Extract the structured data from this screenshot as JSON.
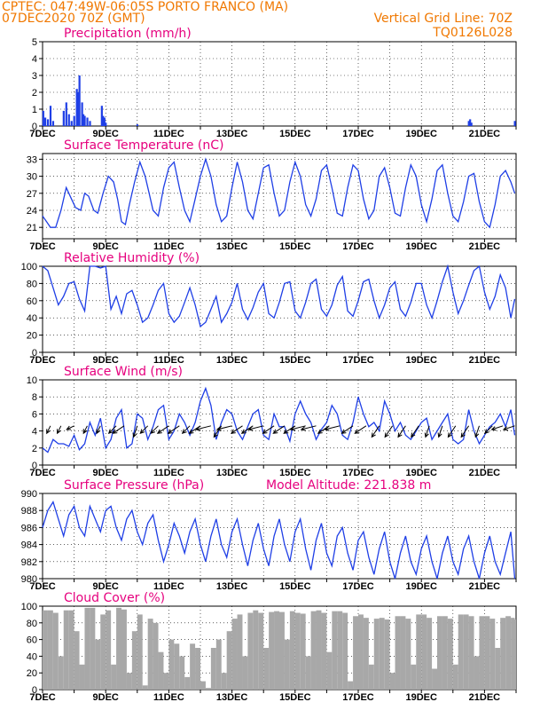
{
  "header": {
    "line1": "CPTEC:   047:49W-06:05S   PORTO FRANCO (MA)",
    "line2_left": "07DEC2020 70Z (GMT)",
    "line2_right": "Vertical Grid Line: 70Z",
    "line3_right": "TQ0126L028"
  },
  "colors": {
    "header": "#f07800",
    "panel_title": "#e6007e",
    "series": "#1f3fe6",
    "cloud": "#a8a8a8",
    "grid": "#000000"
  },
  "chart_data": [
    {
      "type": "bar",
      "title": "Precipitation (mm/h)",
      "ylim": [
        0,
        5
      ],
      "yticks": [
        "0",
        "1",
        "2",
        "3",
        "4",
        "5"
      ],
      "xticks": [
        "7DEC",
        "9DEC",
        "11DEC",
        "13DEC",
        "15DEC",
        "17DEC",
        "19DEC",
        "21DEC"
      ],
      "grid": true,
      "x_unit": "hours since 7DEC 00Z",
      "x": [
        0.5,
        2,
        4,
        6,
        8,
        16,
        18,
        20,
        22,
        24,
        26,
        27,
        28,
        30,
        31,
        32,
        34,
        36,
        45,
        46,
        47,
        48,
        72,
        324,
        325,
        326,
        359
      ],
      "values": [
        0.9,
        0.5,
        0.4,
        1.2,
        0.3,
        0.9,
        1.4,
        0.7,
        0.3,
        0.6,
        2.2,
        2.0,
        3.0,
        1.4,
        0.7,
        0.6,
        0.5,
        0.3,
        1.2,
        0.6,
        0.5,
        0.2,
        0.1,
        0.3,
        0.4,
        0.2,
        0.3
      ]
    },
    {
      "type": "line",
      "title": "Surface Temperature (nC)",
      "ylim": [
        19,
        34
      ],
      "yticks": [
        "21",
        "24",
        "27",
        "30",
        "33"
      ],
      "xticks": [
        "7DEC",
        "9DEC",
        "11DEC",
        "13DEC",
        "15DEC",
        "17DEC",
        "19DEC",
        "21DEC"
      ],
      "grid": true,
      "x_unit": "hours since 7DEC 00Z",
      "x": [
        0,
        3,
        6,
        10,
        14,
        18,
        22,
        25,
        29,
        32,
        35,
        39,
        42,
        46,
        50,
        54,
        57,
        60,
        63,
        66,
        70,
        74,
        78,
        81,
        84,
        88,
        92,
        96,
        100,
        104,
        108,
        112,
        116,
        120,
        124,
        128,
        132,
        136,
        140,
        144,
        148,
        152,
        156,
        160,
        164,
        168,
        172,
        176,
        180,
        184,
        188,
        192,
        196,
        200,
        204,
        208,
        212,
        216,
        220,
        224,
        228,
        232,
        236,
        240,
        244,
        248,
        252,
        256,
        260,
        264,
        268,
        272,
        276,
        280,
        284,
        288,
        292,
        296,
        300,
        304,
        308,
        312,
        316,
        320,
        324,
        328,
        332,
        336,
        340,
        344,
        348,
        352,
        356,
        359
      ],
      "values": [
        23,
        22,
        21,
        21,
        24,
        28,
        26,
        24.5,
        24,
        27,
        26.5,
        24,
        23.5,
        27,
        30,
        29,
        26,
        22,
        21.5,
        25,
        29,
        32.5,
        30,
        27,
        24,
        23,
        28,
        31.5,
        32.5,
        28,
        24,
        22,
        26,
        30,
        33,
        30,
        25,
        22,
        23,
        28,
        32.5,
        29,
        24,
        22.5,
        27,
        31.5,
        32,
        27,
        23,
        24,
        29,
        32.5,
        30,
        25,
        23,
        26,
        31,
        32,
        28,
        23.5,
        23,
        28,
        32,
        31,
        26,
        22.5,
        24,
        30,
        31.5,
        28,
        23.5,
        23,
        28,
        32,
        30,
        25,
        22,
        26,
        31,
        32,
        27,
        23,
        22,
        25.5,
        30,
        30.5,
        25.5,
        22,
        21,
        25,
        30,
        31,
        29,
        27
      ]
    },
    {
      "type": "line",
      "title": "Relative Humidity (%)",
      "ylim": [
        0,
        100
      ],
      "yticks": [
        "0",
        "20",
        "40",
        "60",
        "80",
        "100"
      ],
      "xticks": [
        "7DEC",
        "9DEC",
        "11DEC",
        "13DEC",
        "15DEC",
        "17DEC",
        "19DEC",
        "21DEC"
      ],
      "grid": true,
      "x_unit": "hours since 7DEC 00Z",
      "x": [
        0,
        4,
        8,
        12,
        16,
        20,
        24,
        28,
        32,
        36,
        40,
        44,
        48,
        52,
        56,
        60,
        64,
        68,
        72,
        76,
        80,
        84,
        88,
        92,
        96,
        100,
        104,
        108,
        112,
        116,
        120,
        124,
        128,
        132,
        136,
        140,
        144,
        148,
        152,
        156,
        160,
        164,
        168,
        172,
        176,
        180,
        184,
        188,
        192,
        196,
        200,
        204,
        208,
        212,
        216,
        220,
        224,
        228,
        232,
        236,
        240,
        244,
        248,
        252,
        256,
        260,
        264,
        268,
        272,
        276,
        280,
        284,
        288,
        292,
        296,
        300,
        304,
        308,
        312,
        316,
        320,
        324,
        328,
        332,
        336,
        340,
        344,
        348,
        352,
        356,
        359
      ],
      "values": [
        100,
        95,
        75,
        55,
        65,
        80,
        82,
        62,
        48,
        100,
        100,
        98,
        100,
        50,
        65,
        45,
        68,
        72,
        55,
        35,
        40,
        55,
        72,
        80,
        45,
        35,
        42,
        58,
        75,
        55,
        30,
        35,
        50,
        65,
        35,
        45,
        58,
        80,
        50,
        38,
        52,
        70,
        80,
        45,
        40,
        58,
        80,
        82,
        48,
        40,
        58,
        80,
        85,
        50,
        42,
        55,
        78,
        88,
        48,
        42,
        60,
        82,
        85,
        60,
        40,
        55,
        75,
        82,
        50,
        42,
        58,
        80,
        80,
        55,
        40,
        60,
        82,
        100,
        70,
        45,
        60,
        78,
        95,
        100,
        70,
        50,
        65,
        90,
        75,
        40,
        62
      ]
    },
    {
      "type": "line",
      "title": "Surface Wind (m/s)",
      "ylim": [
        0,
        10
      ],
      "yticks": [
        "0",
        "2",
        "4",
        "6",
        "8",
        "10"
      ],
      "xticks": [
        "7DEC",
        "9DEC",
        "11DEC",
        "13DEC",
        "15DEC",
        "17DEC",
        "19DEC",
        "21DEC"
      ],
      "grid": true,
      "x_unit": "hours since 7DEC 00Z",
      "x": [
        0,
        4,
        8,
        12,
        16,
        20,
        24,
        28,
        32,
        36,
        40,
        44,
        48,
        52,
        56,
        60,
        64,
        68,
        72,
        76,
        80,
        84,
        88,
        92,
        96,
        100,
        104,
        108,
        112,
        116,
        120,
        124,
        128,
        132,
        136,
        140,
        144,
        148,
        152,
        156,
        160,
        164,
        168,
        172,
        176,
        180,
        184,
        188,
        192,
        196,
        200,
        204,
        208,
        212,
        216,
        220,
        224,
        228,
        232,
        236,
        240,
        244,
        248,
        252,
        256,
        260,
        264,
        268,
        272,
        276,
        280,
        284,
        288,
        292,
        296,
        300,
        304,
        308,
        312,
        316,
        320,
        324,
        328,
        332,
        336,
        340,
        344,
        348,
        352,
        356,
        359
      ],
      "values": [
        2,
        1.5,
        3,
        2.5,
        2.5,
        2.2,
        3.5,
        1.8,
        2.5,
        5,
        3.5,
        5.5,
        2,
        3,
        5.5,
        6.5,
        2,
        2.5,
        6,
        5.5,
        3,
        4.5,
        6.5,
        7,
        3,
        4,
        6,
        5,
        3.5,
        5,
        7.5,
        9,
        7,
        3,
        5,
        6.5,
        6,
        4,
        3,
        4.5,
        6,
        6.5,
        3.5,
        3,
        6,
        4.5,
        4.5,
        2.8,
        6,
        7.5,
        6,
        5,
        3,
        4.2,
        5,
        7,
        6,
        3.5,
        3,
        5,
        8,
        6,
        4.5,
        5,
        4,
        7.5,
        6,
        4,
        5,
        3.5,
        3,
        4,
        5,
        5.5,
        3,
        4,
        5,
        6,
        3,
        2.5,
        3,
        6.5,
        4,
        2.5,
        3.5,
        4.5,
        5,
        6,
        4.5,
        6.5,
        3.5
      ],
      "vectors": {
        "x": [
          6,
          14,
          24,
          34,
          44,
          56,
          62,
          72,
          80,
          88,
          96,
          104,
          112,
          120,
          128,
          136,
          144,
          152,
          160,
          168,
          176,
          184,
          192,
          200,
          208,
          218,
          226,
          236,
          246,
          256,
          266,
          276,
          286,
          294,
          304,
          314,
          324,
          332,
          342,
          350,
          359
        ],
        "u": [
          -1,
          -1,
          -2,
          -1,
          -1,
          -2,
          -3,
          -1,
          -2,
          -2,
          -3,
          -3,
          -2,
          -3,
          -4,
          -2,
          -4,
          -3,
          -3,
          -4,
          -3,
          -3,
          -3,
          -4,
          -4,
          -3,
          -4,
          -3,
          -3,
          -2,
          -2,
          -2,
          -2,
          -1,
          -1,
          -2,
          -2,
          -1,
          -2,
          -3,
          -3
        ],
        "v": [
          -2,
          -2,
          -1,
          -2,
          -2,
          -2,
          -2,
          -3,
          -2,
          -2,
          -2,
          -2,
          -2,
          -2,
          -1,
          -3,
          -1,
          -2,
          -2,
          -1,
          -2,
          -2,
          -2,
          -1,
          -1,
          -2,
          -1,
          -2,
          -2,
          -3,
          -3,
          -3,
          -3,
          -3,
          -3,
          -3,
          -3,
          -3,
          -2,
          -1,
          -1
        ]
      }
    },
    {
      "type": "line",
      "title": "Surface Pressure (hPa)",
      "annotation": "Model Altitude: 221.838  m",
      "ylim": [
        980,
        990
      ],
      "yticks": [
        "980",
        "982",
        "984",
        "986",
        "988",
        "990"
      ],
      "xticks": [
        "7DEC",
        "9DEC",
        "11DEC",
        "13DEC",
        "15DEC",
        "17DEC",
        "19DEC",
        "21DEC"
      ],
      "grid": true,
      "x_unit": "hours since 7DEC 00Z",
      "x": [
        0,
        4,
        8,
        12,
        16,
        20,
        24,
        28,
        32,
        36,
        40,
        44,
        48,
        52,
        56,
        60,
        64,
        68,
        72,
        76,
        80,
        84,
        88,
        92,
        96,
        100,
        104,
        108,
        112,
        116,
        120,
        124,
        128,
        132,
        136,
        140,
        144,
        148,
        152,
        156,
        160,
        164,
        168,
        172,
        176,
        180,
        184,
        188,
        192,
        196,
        200,
        204,
        208,
        212,
        216,
        220,
        224,
        228,
        232,
        236,
        240,
        244,
        248,
        252,
        256,
        260,
        264,
        268,
        272,
        276,
        280,
        284,
        288,
        292,
        296,
        300,
        304,
        308,
        312,
        316,
        320,
        324,
        328,
        332,
        336,
        340,
        344,
        348,
        352,
        356,
        359
      ],
      "values": [
        986,
        988,
        989,
        987,
        985,
        987.5,
        988.5,
        986,
        985,
        988.5,
        987,
        985.5,
        988,
        988.5,
        986,
        984.5,
        987,
        988,
        985.5,
        984,
        986.5,
        987.5,
        984.5,
        982,
        984,
        986.5,
        985,
        983,
        985.5,
        987,
        984,
        982,
        985,
        987,
        984,
        982.5,
        985.5,
        987,
        984,
        981.5,
        984.5,
        986.5,
        983.5,
        981.5,
        985,
        987,
        984,
        982,
        985.5,
        987,
        983.5,
        981,
        984.5,
        986.5,
        983,
        981.5,
        985,
        986,
        983,
        981,
        984.5,
        985.5,
        982.5,
        980.5,
        983.5,
        985.5,
        982,
        980,
        983,
        985,
        982,
        980.5,
        983.5,
        985,
        982,
        980,
        983,
        985,
        982,
        980.5,
        983.5,
        985,
        982,
        980,
        983,
        985,
        982,
        980.5,
        983,
        985.5,
        979
      ]
    },
    {
      "type": "area",
      "title": "Cloud Cover (%)",
      "ylim": [
        0,
        100
      ],
      "yticks": [
        "0",
        "20",
        "40",
        "60",
        "80",
        "100"
      ],
      "xticks": [
        "7DEC",
        "9DEC",
        "11DEC",
        "13DEC",
        "15DEC",
        "17DEC",
        "19DEC",
        "21DEC"
      ],
      "grid": true,
      "x_unit": "hours since 7DEC 00Z",
      "x": [
        0,
        4,
        8,
        12,
        16,
        20,
        24,
        28,
        32,
        36,
        40,
        44,
        48,
        52,
        56,
        60,
        64,
        68,
        72,
        76,
        80,
        84,
        88,
        92,
        96,
        100,
        104,
        108,
        112,
        116,
        120,
        124,
        128,
        132,
        136,
        140,
        144,
        148,
        152,
        156,
        160,
        164,
        168,
        172,
        176,
        180,
        184,
        188,
        192,
        196,
        200,
        204,
        208,
        212,
        216,
        220,
        224,
        228,
        232,
        236,
        240,
        244,
        248,
        252,
        256,
        260,
        264,
        268,
        272,
        276,
        280,
        284,
        288,
        292,
        296,
        300,
        304,
        308,
        312,
        316,
        320,
        324,
        328,
        332,
        336,
        340,
        344,
        348,
        352,
        356,
        359
      ],
      "values": [
        95,
        95,
        92,
        40,
        95,
        95,
        70,
        30,
        98,
        98,
        60,
        90,
        95,
        30,
        98,
        96,
        20,
        70,
        90,
        5,
        85,
        80,
        45,
        20,
        60,
        55,
        40,
        15,
        55,
        50,
        10,
        2,
        50,
        60,
        20,
        70,
        85,
        90,
        40,
        92,
        95,
        92,
        50,
        93,
        94,
        93,
        60,
        94,
        92,
        91,
        40,
        94,
        95,
        92,
        45,
        94,
        94,
        92,
        10,
        88,
        90,
        86,
        30,
        85,
        86,
        84,
        20,
        88,
        88,
        85,
        30,
        90,
        90,
        86,
        25,
        88,
        88,
        85,
        30,
        90,
        90,
        88,
        40,
        88,
        88,
        85,
        50,
        86,
        88,
        86,
        84
      ]
    }
  ]
}
